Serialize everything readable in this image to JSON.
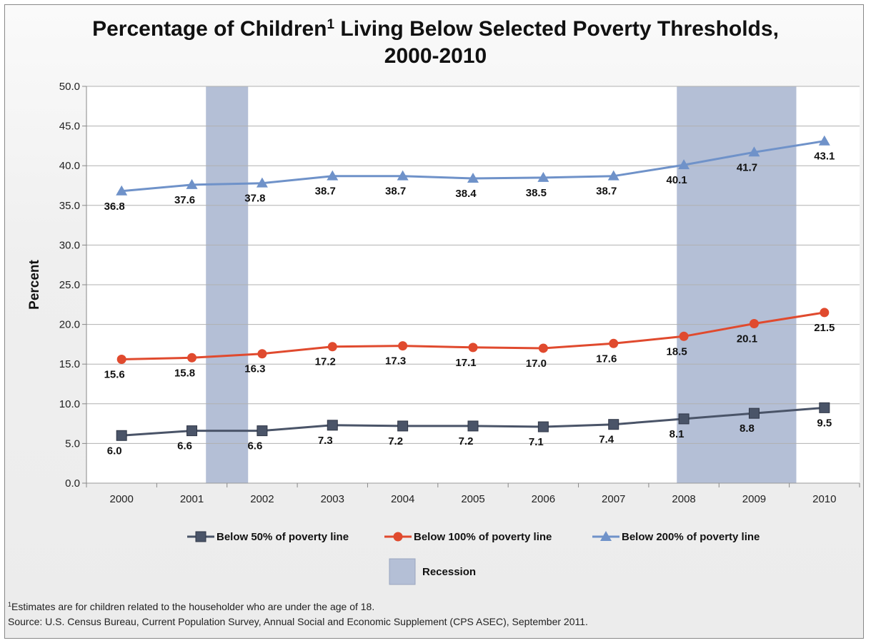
{
  "title": {
    "part1": "Percentage of Children",
    "superscript": "1",
    "part2": " Living Below Selected Poverty Thresholds,",
    "line2": "2000-2010"
  },
  "chart_data": {
    "type": "line",
    "ylabel": "Percent",
    "xlabel": "",
    "ylim": [
      0,
      50
    ],
    "ytick_step": 5,
    "grid": "horizontal",
    "legend_position": "bottom",
    "categories": [
      "2000",
      "2001",
      "2002",
      "2003",
      "2004",
      "2005",
      "2006",
      "2007",
      "2008",
      "2009",
      "2010"
    ],
    "series": [
      {
        "name": "Below 50% of poverty line",
        "color": "#4a5468",
        "marker": "square",
        "values": [
          6.0,
          6.6,
          6.6,
          7.3,
          7.2,
          7.2,
          7.1,
          7.4,
          8.1,
          8.8,
          9.5
        ]
      },
      {
        "name": "Below 100% of poverty line",
        "color": "#e04a2e",
        "marker": "circle",
        "values": [
          15.6,
          15.8,
          16.3,
          17.2,
          17.3,
          17.1,
          17.0,
          17.6,
          18.5,
          20.1,
          21.5
        ]
      },
      {
        "name": "Below 200% of poverty line",
        "color": "#6f92c9",
        "marker": "triangle",
        "values": [
          36.8,
          37.6,
          37.8,
          38.7,
          38.7,
          38.4,
          38.5,
          38.7,
          40.1,
          41.7,
          43.1
        ]
      }
    ],
    "recessions": [
      {
        "start": 2001.2,
        "end": 2001.8
      },
      {
        "start": 2007.9,
        "end": 2009.6
      }
    ],
    "recession_label": "Recession",
    "recession_color": "#b4bfd6"
  },
  "footnote": {
    "marker": "1",
    "line1": "Estimates are for children related to the householder who are under the age of 18.",
    "line2": "Source: U.S. Census Bureau, Current Population Survey, Annual Social and Economic Supplement (CPS ASEC), September 2011."
  }
}
